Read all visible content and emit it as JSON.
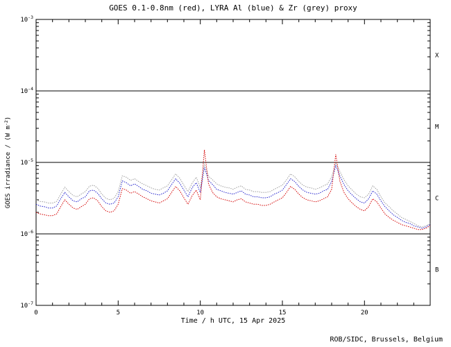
{
  "page": {
    "credit": "ROB/SIDC, Brussels, Belgium"
  },
  "chart_data": {
    "type": "line",
    "title": "GOES 0.1-0.8nm (red), LYRA Al (blue) & Zr (grey) proxy",
    "xlabel": "Time / h UTC, 15 Apr 2025",
    "ylabel": "GOES irradiance / (W m^-2)",
    "ylabel_parts": {
      "prefix": "GOES irradiance / (W m",
      "sup": "-2",
      "suffix": ")"
    },
    "x_range": [
      0,
      24
    ],
    "y_range_log10": [
      -7,
      -3
    ],
    "y_scale": "log10",
    "grid": "horizontal flare-class boundary lines only",
    "legend_position": "none (colors named in title)",
    "x_major_ticks": [
      0,
      5,
      10,
      15,
      20
    ],
    "x_tick_labels": [
      "0",
      "5",
      "10",
      "15",
      "20"
    ],
    "x_minor_tick_step_hours": 1,
    "y_tick_exponents": [
      -3,
      -4,
      -5,
      -6,
      -7
    ],
    "flare_class_lines": [
      0.0001,
      1e-05,
      1e-06
    ],
    "flare_class_labels": [
      "X",
      "M",
      "C",
      "B"
    ],
    "axis_color": "#000000",
    "series_unit_scale": 1e-06,
    "x": [
      0,
      0.25,
      0.5,
      0.75,
      1,
      1.25,
      1.5,
      1.75,
      2,
      2.25,
      2.5,
      2.75,
      3,
      3.25,
      3.5,
      3.75,
      4,
      4.25,
      4.5,
      4.75,
      5,
      5.25,
      5.5,
      5.75,
      6,
      6.25,
      6.5,
      6.75,
      7,
      7.25,
      7.5,
      7.75,
      8,
      8.25,
      8.5,
      8.75,
      9,
      9.25,
      9.5,
      9.75,
      10,
      10.25,
      10.5,
      10.75,
      11,
      11.25,
      11.5,
      11.75,
      12,
      12.25,
      12.5,
      12.75,
      13,
      13.25,
      13.5,
      13.75,
      14,
      14.25,
      14.5,
      14.75,
      15,
      15.25,
      15.5,
      15.75,
      16,
      16.25,
      16.5,
      16.75,
      17,
      17.25,
      17.5,
      17.75,
      18,
      18.25,
      18.5,
      18.75,
      19,
      19.25,
      19.5,
      19.75,
      20,
      20.25,
      20.5,
      20.75,
      21,
      21.25,
      21.5,
      21.75,
      22,
      22.25,
      22.5,
      22.75,
      23,
      23.25,
      23.5,
      23.75,
      24
    ],
    "series": [
      {
        "id": "goes-red",
        "name": "GOES 0.1-0.8nm",
        "color": "#d40000",
        "values": [
          2.0,
          1.9,
          1.85,
          1.8,
          1.8,
          1.9,
          2.4,
          3.0,
          2.6,
          2.3,
          2.2,
          2.4,
          2.6,
          3.1,
          3.2,
          2.9,
          2.4,
          2.1,
          2.0,
          2.1,
          2.6,
          4.3,
          4.1,
          3.7,
          3.9,
          3.6,
          3.3,
          3.1,
          2.9,
          2.8,
          2.7,
          2.9,
          3.1,
          3.8,
          4.6,
          4.0,
          3.2,
          2.6,
          3.4,
          4.1,
          3.0,
          15.0,
          5.0,
          3.8,
          3.3,
          3.1,
          3.0,
          2.9,
          2.8,
          3.0,
          3.1,
          2.8,
          2.7,
          2.6,
          2.6,
          2.5,
          2.5,
          2.6,
          2.8,
          3.0,
          3.2,
          3.8,
          4.6,
          4.2,
          3.6,
          3.2,
          3.0,
          2.9,
          2.8,
          2.9,
          3.1,
          3.3,
          4.2,
          13.0,
          5.5,
          3.8,
          3.1,
          2.7,
          2.4,
          2.2,
          2.1,
          2.4,
          3.1,
          2.8,
          2.3,
          1.9,
          1.7,
          1.55,
          1.45,
          1.35,
          1.3,
          1.25,
          1.2,
          1.15,
          1.15,
          1.2,
          1.3
        ]
      },
      {
        "id": "lyra-al-blue",
        "name": "LYRA Al proxy",
        "color": "#2020cc",
        "values": [
          2.6,
          2.45,
          2.4,
          2.3,
          2.3,
          2.45,
          3.1,
          3.8,
          3.3,
          2.9,
          2.8,
          3.1,
          3.3,
          4.0,
          4.1,
          3.7,
          3.1,
          2.7,
          2.6,
          2.7,
          3.3,
          5.5,
          5.2,
          4.7,
          5.0,
          4.6,
          4.2,
          4.0,
          3.7,
          3.6,
          3.5,
          3.7,
          4.0,
          4.9,
          5.9,
          5.1,
          4.1,
          3.3,
          4.4,
          5.2,
          3.8,
          8.5,
          5.6,
          4.9,
          4.2,
          4.0,
          3.8,
          3.7,
          3.6,
          3.8,
          4.0,
          3.6,
          3.5,
          3.3,
          3.3,
          3.2,
          3.2,
          3.3,
          3.6,
          3.8,
          4.1,
          4.9,
          5.9,
          5.4,
          4.6,
          4.1,
          3.8,
          3.7,
          3.6,
          3.7,
          4.0,
          4.2,
          5.4,
          9.0,
          6.5,
          4.9,
          4.0,
          3.5,
          3.1,
          2.8,
          2.7,
          3.1,
          4.0,
          3.6,
          2.9,
          2.4,
          2.1,
          1.85,
          1.7,
          1.55,
          1.45,
          1.4,
          1.3,
          1.25,
          1.2,
          1.25,
          1.35
        ]
      },
      {
        "id": "lyra-zr-grey",
        "name": "LYRA Zr proxy",
        "color": "#9c9c9c",
        "values": [
          3.0,
          2.85,
          2.8,
          2.7,
          2.7,
          2.85,
          3.6,
          4.5,
          3.9,
          3.45,
          3.3,
          3.6,
          3.9,
          4.65,
          4.8,
          4.35,
          3.6,
          3.15,
          3.0,
          3.15,
          3.9,
          6.5,
          6.2,
          5.6,
          5.9,
          5.4,
          5.0,
          4.7,
          4.4,
          4.2,
          4.1,
          4.4,
          4.7,
          5.7,
          6.9,
          6.0,
          4.8,
          3.9,
          5.1,
          6.2,
          4.5,
          9.5,
          6.4,
          5.7,
          5.0,
          4.7,
          4.5,
          4.4,
          4.2,
          4.5,
          4.7,
          4.2,
          4.1,
          3.9,
          3.9,
          3.8,
          3.8,
          3.9,
          4.2,
          4.5,
          4.8,
          5.7,
          6.9,
          6.3,
          5.4,
          4.8,
          4.5,
          4.4,
          4.2,
          4.4,
          4.7,
          5.0,
          6.3,
          10.0,
          7.5,
          5.7,
          4.7,
          4.1,
          3.6,
          3.3,
          3.2,
          3.6,
          4.7,
          4.2,
          3.3,
          2.7,
          2.4,
          2.1,
          1.9,
          1.7,
          1.6,
          1.5,
          1.4,
          1.3,
          1.25,
          1.3,
          1.4
        ]
      }
    ]
  }
}
